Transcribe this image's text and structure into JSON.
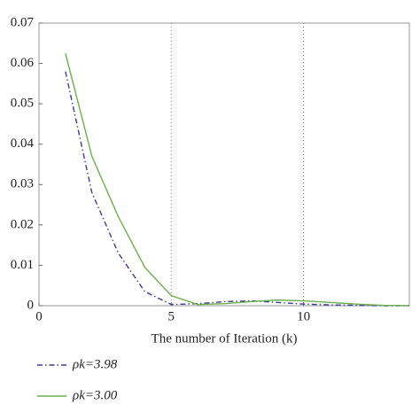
{
  "chart_data": {
    "type": "line",
    "x_label": "The number of Iteration (k)",
    "x": [
      1,
      2,
      3,
      4,
      5,
      6,
      7,
      8,
      9,
      10,
      11,
      12,
      13,
      14
    ],
    "series": [
      {
        "name": "ρk=3.98",
        "color": "#3b3b9a",
        "dash": "dashdot",
        "values": [
          0.058,
          0.028,
          0.013,
          0.0035,
          0.0003,
          0.0005,
          0.001,
          0.0012,
          0.0008,
          0.0004,
          0.0002,
          0.0001,
          0,
          0
        ]
      },
      {
        "name": "ρk=3.00",
        "color": "#6ab04c",
        "dash": "solid",
        "values": [
          0.0625,
          0.037,
          0.022,
          0.0095,
          0.0025,
          0.0003,
          0.0005,
          0.001,
          0.0014,
          0.0012,
          0.0008,
          0.0004,
          0.0001,
          0
        ]
      }
    ],
    "xlim": [
      0,
      14
    ],
    "xticks": [
      0,
      5,
      10
    ],
    "ylim": [
      0,
      0.07
    ],
    "yticks": [
      0,
      0.01,
      0.02,
      0.03,
      0.04,
      0.05,
      0.06,
      0.07
    ],
    "grid": "x"
  }
}
